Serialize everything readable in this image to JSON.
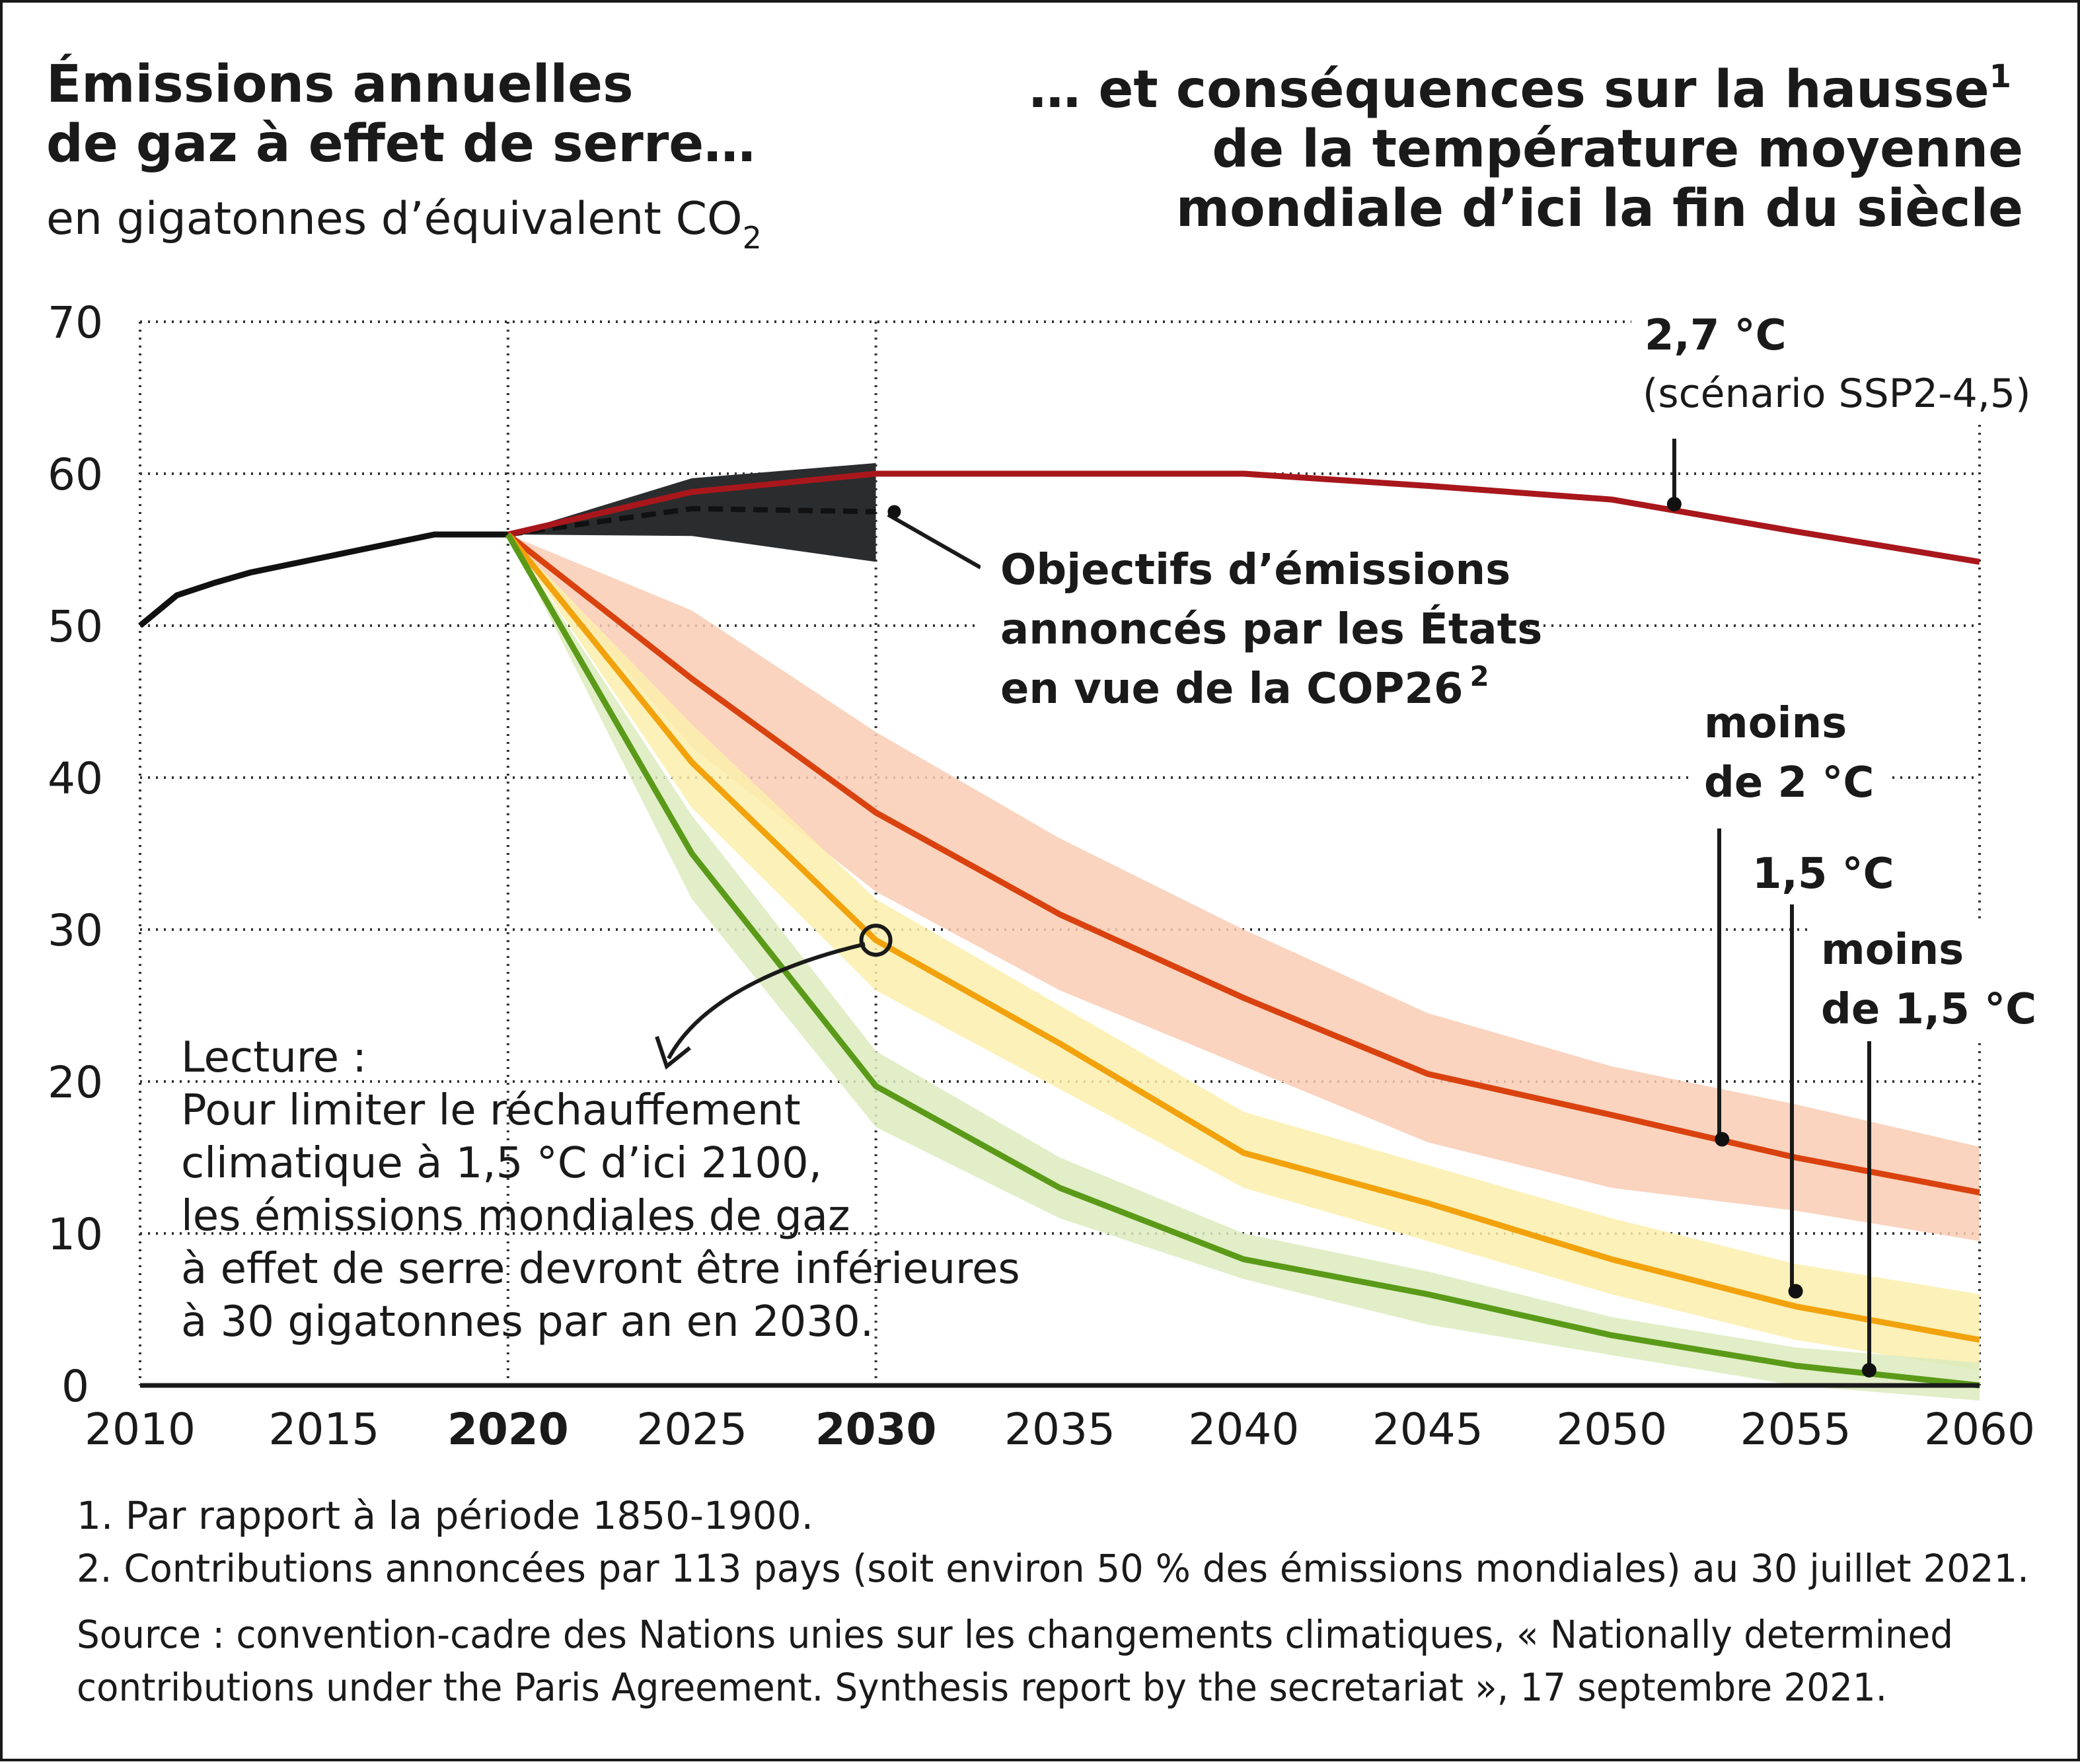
{
  "header": {
    "left_title_1": "Émissions annuelles",
    "left_title_2": "de gaz à effet de serre…",
    "left_unit": "en gigatonnes d’équivalent CO",
    "left_unit_sub": "2",
    "right_title_1": "… et conséquences sur la hausse",
    "right_title_1_sup": "1",
    "right_title_2": "de la température moyenne",
    "right_title_3": "mondiale d’ici la fin du siècle"
  },
  "annotations": {
    "ssp_label": "2,7 °C",
    "ssp_sub": "(scénario SSP2-4,5)",
    "ndc_1": "Objectifs d’émissions",
    "ndc_2": "annoncés par les États",
    "ndc_3": "en vue de la COP26",
    "ndc_3_sup": "2",
    "below2_1": "moins",
    "below2_2": "de 2 °C",
    "c15": "1,5 °C",
    "below15_1": "moins",
    "below15_2": "de 1,5 °C",
    "reading_title": "Lecture :",
    "reading_lines": [
      "Pour limiter le réchauffement",
      "climatique à 1,5 °C d’ici 2100,",
      "les émissions mondiales de gaz",
      "à effet de serre devront être inférieures",
      "à 30 gigatonnes par an en 2030."
    ]
  },
  "footnotes": {
    "note1": "1. Par rapport à la période 1850-1900.",
    "note2": "2. Contributions annoncées par 113 pays (soit environ 50 % des émissions mondiales) au 30 juillet 2021.",
    "source_1": "Source : convention-cadre des Nations unies sur les changements climatiques, « Nationally determined",
    "source_2": "contributions under the Paris Agreement. Synthesis report by the secretariat », 17 septembre 2021."
  },
  "colors": {
    "historical": "#111111",
    "ssp245": "#a8171c",
    "ndc_band": "#2b2c2e",
    "below2": "#d9420f",
    "below2_band": "#f9cdb4",
    "c15": "#f2a20c",
    "c15_band": "#fbeeab",
    "below15": "#5a9a18",
    "below15_band": "#dcebbd",
    "grid": "#333333"
  },
  "chart_data": {
    "type": "line",
    "xlim": [
      2010,
      2060
    ],
    "ylim": [
      0,
      70
    ],
    "x_ticks": [
      2010,
      2015,
      2020,
      2025,
      2030,
      2035,
      2040,
      2045,
      2050,
      2055,
      2060
    ],
    "x_ticks_bold": [
      2020,
      2030
    ],
    "y_ticks": [
      0,
      10,
      20,
      30,
      40,
      50,
      60,
      70
    ],
    "grid": "dotted",
    "series": [
      {
        "key": "historical",
        "x": [
          2010,
          2011,
          2012,
          2013,
          2014,
          2015,
          2016,
          2017,
          2018,
          2019,
          2020
        ],
        "values": [
          50,
          52,
          52.8,
          53.5,
          54,
          54.5,
          55,
          55.5,
          56,
          56,
          56
        ]
      },
      {
        "key": "ndc_announced",
        "style": "dashed",
        "x": [
          2020,
          2025,
          2030
        ],
        "values": [
          56,
          57.7,
          57.5
        ],
        "band_upper": [
          56,
          59.7,
          60.7
        ],
        "band_lower": [
          56,
          55.9,
          54.2
        ]
      },
      {
        "name": "2,7 °C",
        "key": "ssp245",
        "x": [
          2020,
          2025,
          2030,
          2035,
          2040,
          2045,
          2050,
          2055,
          2060
        ],
        "values": [
          56,
          58.8,
          60,
          60,
          60,
          59.2,
          58.3,
          56.2,
          54.2
        ]
      },
      {
        "name": "moins de 2 °C",
        "key": "below2",
        "x": [
          2020,
          2025,
          2030,
          2035,
          2040,
          2045,
          2050,
          2055,
          2060
        ],
        "values": [
          56,
          46.5,
          37.7,
          31,
          25.5,
          20.5,
          17.8,
          15,
          12.7
        ],
        "band_upper": [
          56,
          51,
          43,
          36,
          30,
          24.5,
          21,
          18.5,
          15.7
        ],
        "band_lower": [
          56,
          42,
          32.5,
          26,
          21,
          16,
          13,
          11.5,
          9.5
        ]
      },
      {
        "name": "1,5 °C",
        "key": "c15",
        "x": [
          2020,
          2025,
          2030,
          2035,
          2040,
          2045,
          2050,
          2055,
          2060
        ],
        "values": [
          56,
          41,
          29.3,
          22.5,
          15.3,
          12,
          8.3,
          5.2,
          3
        ],
        "band_upper": [
          56,
          43.5,
          32,
          25,
          18,
          14.5,
          11,
          8,
          6
        ],
        "band_lower": [
          56,
          38,
          26,
          19.5,
          13,
          9.5,
          6,
          3,
          1
        ]
      },
      {
        "name": "moins de 1,5 °C",
        "key": "below15",
        "x": [
          2020,
          2025,
          2030,
          2035,
          2040,
          2045,
          2050,
          2055,
          2060
        ],
        "values": [
          56,
          35,
          19.7,
          13,
          8.3,
          6,
          3.3,
          1.3,
          0
        ],
        "band_upper": [
          56,
          37.5,
          22,
          15,
          10,
          7.5,
          4.5,
          2.5,
          1.5
        ],
        "band_lower": [
          56,
          32,
          17,
          11,
          7,
          4,
          2,
          0,
          -1
        ]
      }
    ],
    "markers": [
      {
        "series": "ssp245",
        "x": 2051.7,
        "y": 58
      },
      {
        "series": "below2",
        "x": 2053,
        "y": 16.2
      },
      {
        "series": "c15",
        "x": 2055,
        "y": 6.2
      },
      {
        "series": "below15",
        "x": 2057,
        "y": 1
      }
    ],
    "highlight": {
      "x": 2030,
      "y": 29.3
    }
  }
}
